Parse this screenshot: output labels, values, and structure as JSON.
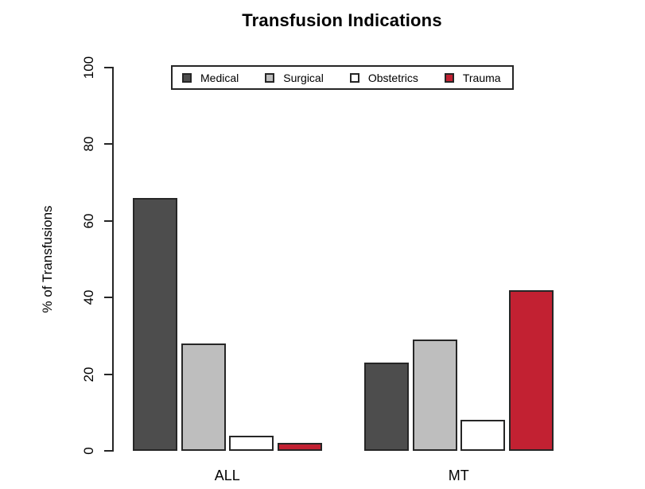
{
  "title": "Transfusion Indications",
  "chart_data": {
    "type": "bar",
    "title": "Transfusion Indications",
    "xlabel": "",
    "ylabel": "% of Transfusions",
    "ylim": [
      0,
      100
    ],
    "yticks": [
      0,
      20,
      40,
      60,
      80,
      100
    ],
    "categories": [
      "ALL",
      "MT"
    ],
    "series": [
      {
        "name": "Medical",
        "color": "#4D4D4D",
        "values": [
          66,
          23
        ]
      },
      {
        "name": "Surgical",
        "color": "#BEBEBE",
        "values": [
          28,
          29
        ]
      },
      {
        "name": "Obstetrics",
        "color": "#FFFFFF",
        "values": [
          4,
          8
        ]
      },
      {
        "name": "Trauma",
        "color": "#C22132",
        "values": [
          2,
          42
        ]
      }
    ],
    "legend_position": "top-center",
    "legend_border": true,
    "grid": false,
    "bar_border_color": "#262626",
    "background_color": "#FFFFFF"
  }
}
